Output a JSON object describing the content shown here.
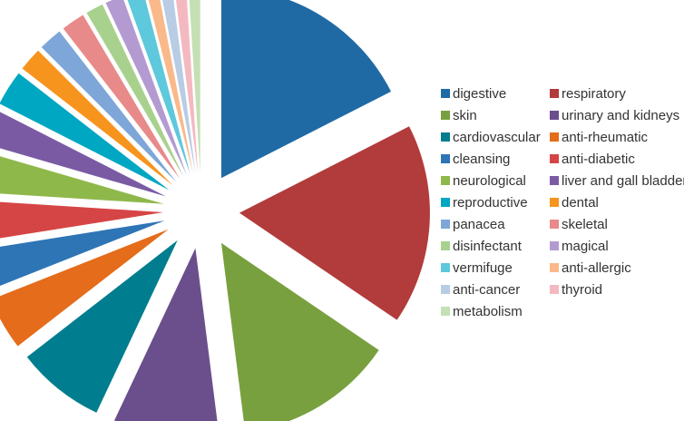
{
  "chart_data": {
    "type": "pie",
    "title": "",
    "legend_position": "right",
    "exploded": true,
    "slices": [
      {
        "label": "digestive",
        "value": 17.5,
        "color": "#1f6aa5"
      },
      {
        "label": "respiratory",
        "value": 17.0,
        "color": "#b23b3b"
      },
      {
        "label": "skin",
        "value": 13.5,
        "color": "#79a03e"
      },
      {
        "label": "urinary and kidneys",
        "value": 9.0,
        "color": "#6b4f8c"
      },
      {
        "label": "cardiovascular",
        "value": 7.5,
        "color": "#007d8e"
      },
      {
        "label": "anti-rheumatic",
        "value": 4.5,
        "color": "#e46c1a"
      },
      {
        "label": "cleansing",
        "value": 3.5,
        "color": "#2e75b6"
      },
      {
        "label": "anti-diabetic",
        "value": 3.5,
        "color": "#d64545"
      },
      {
        "label": "neurological",
        "value": 3.5,
        "color": "#8fb84b"
      },
      {
        "label": "liver and gall bladder",
        "value": 3.0,
        "color": "#7a5ba3"
      },
      {
        "label": "reproductive",
        "value": 3.0,
        "color": "#00a7c2"
      },
      {
        "label": "dental",
        "value": 2.0,
        "color": "#f7941d"
      },
      {
        "label": "panacea",
        "value": 2.0,
        "color": "#7ea6d8"
      },
      {
        "label": "skeletal",
        "value": 2.0,
        "color": "#e88a8a"
      },
      {
        "label": "disinfectant",
        "value": 1.5,
        "color": "#a9d18e"
      },
      {
        "label": "magical",
        "value": 1.5,
        "color": "#b39bd1"
      },
      {
        "label": "vermifuge",
        "value": 1.5,
        "color": "#5ec8dc"
      },
      {
        "label": "anti-allergic",
        "value": 1.0,
        "color": "#f9b98a"
      },
      {
        "label": "anti-cancer",
        "value": 1.0,
        "color": "#b8cce4"
      },
      {
        "label": "thyroid",
        "value": 1.0,
        "color": "#f4b9c0"
      },
      {
        "label": "metabolism",
        "value": 1.0,
        "color": "#c5e0b4"
      }
    ]
  }
}
